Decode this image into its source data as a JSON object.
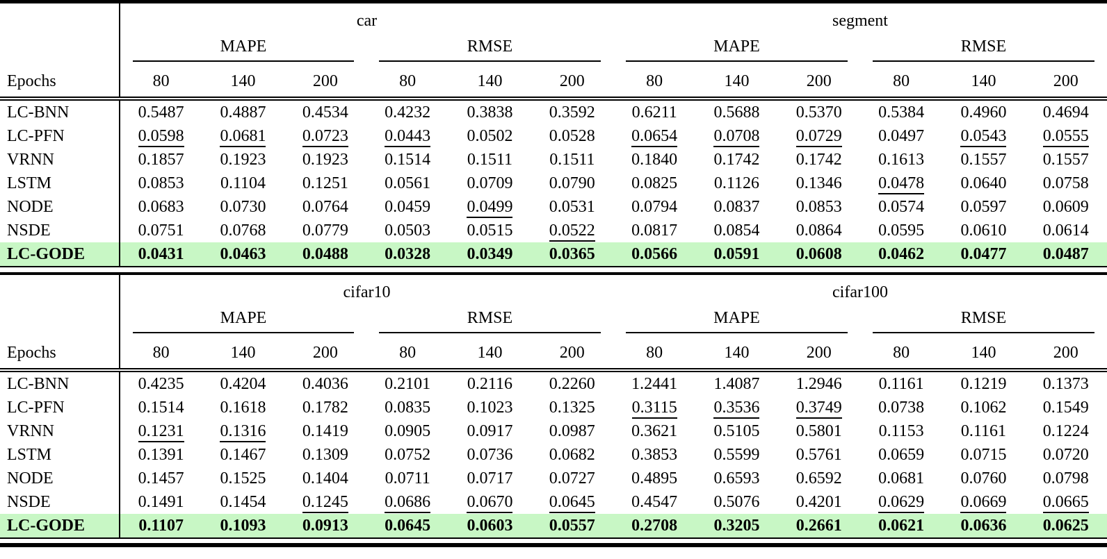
{
  "colors": {
    "highlight_green": "#c8f7c5",
    "rule_black": "#000000",
    "page_background": "#ffffff"
  },
  "epochs_label": "Epochs",
  "epoch_values": [
    "80",
    "140",
    "200"
  ],
  "metrics": [
    "MAPE",
    "RMSE"
  ],
  "tables": [
    {
      "datasets": [
        "car",
        "segment"
      ],
      "rows": [
        {
          "method": "LC-BNN",
          "highlight": false,
          "values": [
            "0.5487",
            "0.4887",
            "0.4534",
            "0.4232",
            "0.3838",
            "0.3592",
            "0.6211",
            "0.5688",
            "0.5370",
            "0.5384",
            "0.4960",
            "0.4694"
          ],
          "underlines": [
            0,
            0,
            0,
            0,
            0,
            0,
            0,
            0,
            0,
            0,
            0,
            0
          ]
        },
        {
          "method": "LC-PFN",
          "highlight": false,
          "values": [
            "0.0598",
            "0.0681",
            "0.0723",
            "0.0443",
            "0.0502",
            "0.0528",
            "0.0654",
            "0.0708",
            "0.0729",
            "0.0497",
            "0.0543",
            "0.0555"
          ],
          "underlines": [
            1,
            1,
            1,
            1,
            0,
            0,
            1,
            1,
            1,
            0,
            1,
            1
          ]
        },
        {
          "method": "VRNN",
          "highlight": false,
          "values": [
            "0.1857",
            "0.1923",
            "0.1923",
            "0.1514",
            "0.1511",
            "0.1511",
            "0.1840",
            "0.1742",
            "0.1742",
            "0.1613",
            "0.1557",
            "0.1557"
          ],
          "underlines": [
            0,
            0,
            0,
            0,
            0,
            0,
            0,
            0,
            0,
            0,
            0,
            0
          ]
        },
        {
          "method": "LSTM",
          "highlight": false,
          "values": [
            "0.0853",
            "0.1104",
            "0.1251",
            "0.0561",
            "0.0709",
            "0.0790",
            "0.0825",
            "0.1126",
            "0.1346",
            "0.0478",
            "0.0640",
            "0.0758"
          ],
          "underlines": [
            0,
            0,
            0,
            0,
            0,
            0,
            0,
            0,
            0,
            1,
            0,
            0
          ]
        },
        {
          "method": "NODE",
          "highlight": false,
          "values": [
            "0.0683",
            "0.0730",
            "0.0764",
            "0.0459",
            "0.0499",
            "0.0531",
            "0.0794",
            "0.0837",
            "0.0853",
            "0.0574",
            "0.0597",
            "0.0609"
          ],
          "underlines": [
            0,
            0,
            0,
            0,
            1,
            0,
            0,
            0,
            0,
            0,
            0,
            0
          ]
        },
        {
          "method": "NSDE",
          "highlight": false,
          "values": [
            "0.0751",
            "0.0768",
            "0.0779",
            "0.0503",
            "0.0515",
            "0.0522",
            "0.0817",
            "0.0854",
            "0.0864",
            "0.0595",
            "0.0610",
            "0.0614"
          ],
          "underlines": [
            0,
            0,
            0,
            0,
            0,
            1,
            0,
            0,
            0,
            0,
            0,
            0
          ]
        },
        {
          "method": "LC-GODE",
          "highlight": true,
          "values": [
            "0.0431",
            "0.0463",
            "0.0488",
            "0.0328",
            "0.0349",
            "0.0365",
            "0.0566",
            "0.0591",
            "0.0608",
            "0.0462",
            "0.0477",
            "0.0487"
          ],
          "underlines": [
            0,
            0,
            0,
            0,
            0,
            0,
            0,
            0,
            0,
            0,
            0,
            0
          ]
        }
      ]
    },
    {
      "datasets": [
        "cifar10",
        "cifar100"
      ],
      "rows": [
        {
          "method": "LC-BNN",
          "highlight": false,
          "values": [
            "0.4235",
            "0.4204",
            "0.4036",
            "0.2101",
            "0.2116",
            "0.2260",
            "1.2441",
            "1.4087",
            "1.2946",
            "0.1161",
            "0.1219",
            "0.1373"
          ],
          "underlines": [
            0,
            0,
            0,
            0,
            0,
            0,
            0,
            0,
            0,
            0,
            0,
            0
          ]
        },
        {
          "method": "LC-PFN",
          "highlight": false,
          "values": [
            "0.1514",
            "0.1618",
            "0.1782",
            "0.0835",
            "0.1023",
            "0.1325",
            "0.3115",
            "0.3536",
            "0.3749",
            "0.0738",
            "0.1062",
            "0.1549"
          ],
          "underlines": [
            0,
            0,
            0,
            0,
            0,
            0,
            1,
            1,
            1,
            0,
            0,
            0
          ]
        },
        {
          "method": "VRNN",
          "highlight": false,
          "values": [
            "0.1231",
            "0.1316",
            "0.1419",
            "0.0905",
            "0.0917",
            "0.0987",
            "0.3621",
            "0.5105",
            "0.5801",
            "0.1153",
            "0.1161",
            "0.1224"
          ],
          "underlines": [
            1,
            1,
            0,
            0,
            0,
            0,
            0,
            0,
            0,
            0,
            0,
            0
          ]
        },
        {
          "method": "LSTM",
          "highlight": false,
          "values": [
            "0.1391",
            "0.1467",
            "0.1309",
            "0.0752",
            "0.0736",
            "0.0682",
            "0.3853",
            "0.5599",
            "0.5761",
            "0.0659",
            "0.0715",
            "0.0720"
          ],
          "underlines": [
            0,
            0,
            0,
            0,
            0,
            0,
            0,
            0,
            0,
            0,
            0,
            0
          ]
        },
        {
          "method": "NODE",
          "highlight": false,
          "values": [
            "0.1457",
            "0.1525",
            "0.1404",
            "0.0711",
            "0.0717",
            "0.0727",
            "0.4895",
            "0.6593",
            "0.6592",
            "0.0681",
            "0.0760",
            "0.0798"
          ],
          "underlines": [
            0,
            0,
            0,
            0,
            0,
            0,
            0,
            0,
            0,
            0,
            0,
            0
          ]
        },
        {
          "method": "NSDE",
          "highlight": false,
          "values": [
            "0.1491",
            "0.1454",
            "0.1245",
            "0.0686",
            "0.0670",
            "0.0645",
            "0.4547",
            "0.5076",
            "0.4201",
            "0.0629",
            "0.0669",
            "0.0665"
          ],
          "underlines": [
            0,
            0,
            1,
            1,
            1,
            1,
            0,
            0,
            0,
            1,
            1,
            1
          ]
        },
        {
          "method": "LC-GODE",
          "highlight": true,
          "values": [
            "0.1107",
            "0.1093",
            "0.0913",
            "0.0645",
            "0.0603",
            "0.0557",
            "0.2708",
            "0.3205",
            "0.2661",
            "0.0621",
            "0.0636",
            "0.0625"
          ],
          "underlines": [
            0,
            0,
            0,
            0,
            0,
            0,
            0,
            0,
            0,
            0,
            0,
            0
          ]
        }
      ]
    }
  ]
}
